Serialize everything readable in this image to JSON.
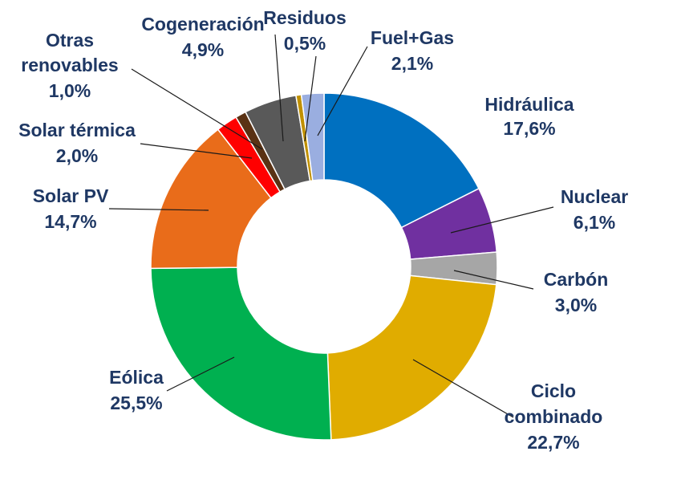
{
  "chart_data": {
    "type": "pie",
    "donut": true,
    "legend": "none",
    "slices": [
      {
        "label": "Hidráulica",
        "value": 17.6,
        "text": "17,6%",
        "color": "#0070c0"
      },
      {
        "label": "Nuclear",
        "value": 6.1,
        "text": "6,1%",
        "color": "#7030a0"
      },
      {
        "label": "Carbón",
        "value": 3.0,
        "text": "3,0%",
        "color": "#a6a6a6"
      },
      {
        "label": "Ciclo combinado",
        "value": 22.7,
        "text": "22,7%",
        "color": "#e0ac00"
      },
      {
        "label": "Eólica",
        "value": 25.5,
        "text": "25,5%",
        "color": "#00b050"
      },
      {
        "label": "Solar PV",
        "value": 14.7,
        "text": "14,7%",
        "color": "#e96c1a"
      },
      {
        "label": "Solar térmica",
        "value": 2.0,
        "text": "2,0%",
        "color": "#ff0000"
      },
      {
        "label": "Otras renovables",
        "value": 1.0,
        "text": "1,0%",
        "color": "#5a3214"
      },
      {
        "label": "Cogeneración",
        "value": 4.9,
        "text": "4,9%",
        "color": "#595959"
      },
      {
        "label": "Residuos",
        "value": 0.5,
        "text": "0,5%",
        "color": "#c09000"
      },
      {
        "label": "Fuel+Gas",
        "value": 2.1,
        "text": "2,1%",
        "color": "#9aaee0"
      }
    ]
  }
}
